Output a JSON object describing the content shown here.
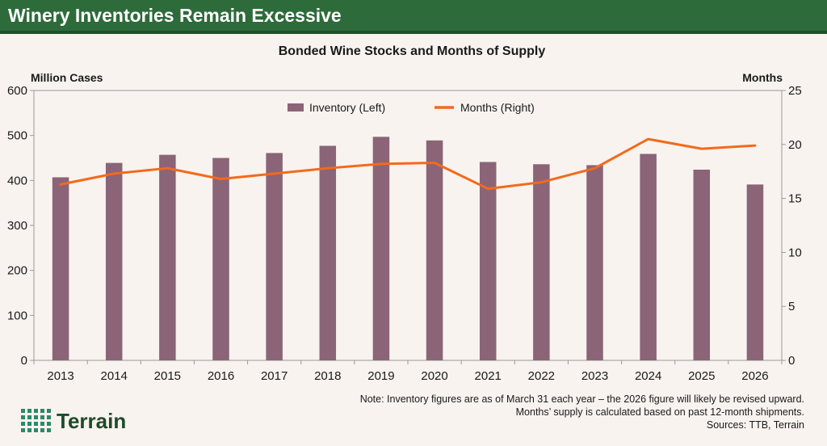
{
  "header": {
    "title": "Winery Inventories Remain Excessive"
  },
  "colors": {
    "banner": "#2e6b3a",
    "bar": "#8b6478",
    "line": "#f26a1b"
  },
  "chart_data": {
    "type": "bar",
    "title": "Bonded Wine Stocks and Months of Supply",
    "ylabel_left": "Million Cases",
    "ylabel_right": "Months",
    "categories": [
      "2013",
      "2014",
      "2015",
      "2016",
      "2017",
      "2018",
      "2019",
      "2020",
      "2021",
      "2022",
      "2023",
      "2024",
      "2025",
      "2026"
    ],
    "series": [
      {
        "name": "Inventory (Left)",
        "type": "bar",
        "axis": "left",
        "values": [
          407,
          439,
          457,
          450,
          461,
          477,
          497,
          489,
          441,
          436,
          434,
          459,
          424,
          391
        ]
      },
      {
        "name": "Months (Right)",
        "type": "line",
        "axis": "right",
        "values": [
          16.3,
          17.3,
          17.8,
          16.8,
          17.3,
          17.8,
          18.2,
          18.3,
          15.9,
          16.5,
          17.8,
          20.5,
          19.6,
          19.9
        ]
      }
    ],
    "ylim_left": [
      0,
      600
    ],
    "yticks_left": [
      0,
      100,
      200,
      300,
      400,
      500,
      600
    ],
    "ylim_right": [
      0,
      25
    ],
    "yticks_right": [
      0,
      5,
      10,
      15,
      20,
      25
    ],
    "legend": "top-center",
    "grid": false
  },
  "notes": [
    "Note: Inventory figures are as of March 31 each year – the 2026 figure will likely be revised upward.",
    "Months’ supply is calculated based on past 12-month shipments.",
    "Sources: TTB, Terrain"
  ],
  "logo": {
    "text": "Terrain",
    "mark": "dot-grid-logo"
  }
}
